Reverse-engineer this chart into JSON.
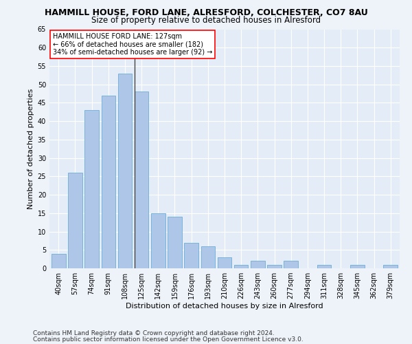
{
  "title": "HAMMILL HOUSE, FORD LANE, ALRESFORD, COLCHESTER, CO7 8AU",
  "subtitle": "Size of property relative to detached houses in Alresford",
  "xlabel": "Distribution of detached houses by size in Alresford",
  "ylabel": "Number of detached properties",
  "categories": [
    "40sqm",
    "57sqm",
    "74sqm",
    "91sqm",
    "108sqm",
    "125sqm",
    "142sqm",
    "159sqm",
    "176sqm",
    "193sqm",
    "210sqm",
    "226sqm",
    "243sqm",
    "260sqm",
    "277sqm",
    "294sqm",
    "311sqm",
    "328sqm",
    "345sqm",
    "362sqm",
    "379sqm"
  ],
  "values": [
    4,
    26,
    43,
    47,
    53,
    48,
    15,
    14,
    7,
    6,
    3,
    1,
    2,
    1,
    2,
    0,
    1,
    0,
    1,
    0,
    1
  ],
  "bar_color": "#aec6e8",
  "bar_edge_color": "#6baed6",
  "annotation_box": {
    "text_line1": "HAMMILL HOUSE FORD LANE: 127sqm",
    "text_line2": "← 66% of detached houses are smaller (182)",
    "text_line3": "34% of semi-detached houses are larger (92) →"
  },
  "ylim": [
    0,
    65
  ],
  "yticks": [
    0,
    5,
    10,
    15,
    20,
    25,
    30,
    35,
    40,
    45,
    50,
    55,
    60,
    65
  ],
  "vline_index": 5,
  "footer_line1": "Contains HM Land Registry data © Crown copyright and database right 2024.",
  "footer_line2": "Contains public sector information licensed under the Open Government Licence v3.0.",
  "bg_color": "#eef2f9",
  "plot_bg_color": "#e4ecf7",
  "grid_color": "#ffffff",
  "title_fontsize": 9,
  "subtitle_fontsize": 8.5,
  "ylabel_fontsize": 8,
  "xlabel_fontsize": 8,
  "tick_fontsize": 7,
  "ann_fontsize": 7,
  "footer_fontsize": 6.5
}
